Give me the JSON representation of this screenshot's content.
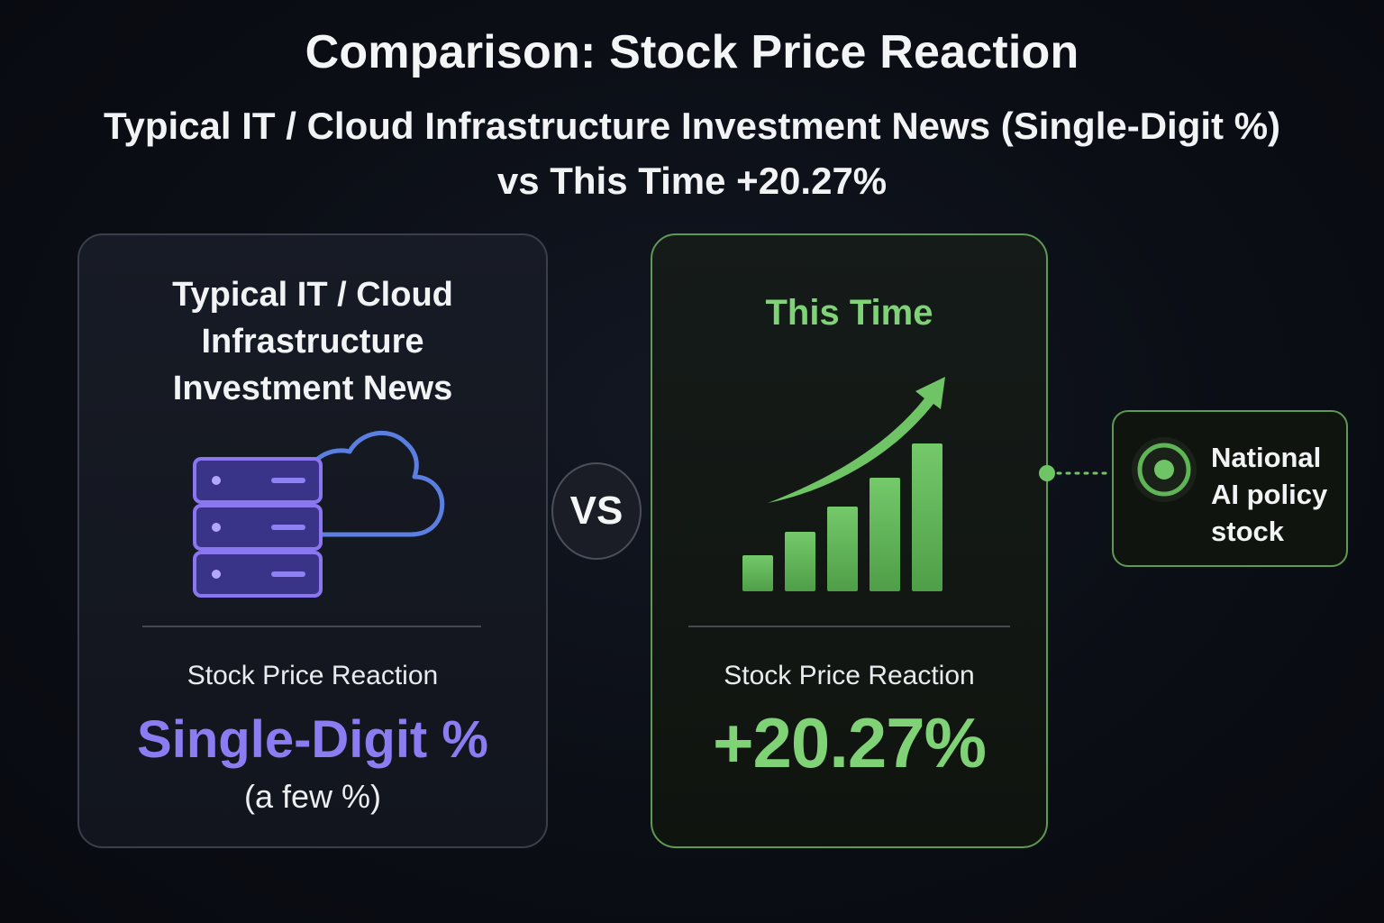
{
  "header": {
    "title": "Comparison: Stock Price Reaction",
    "subtitle_line1": "Typical IT / Cloud Infrastructure Investment News (Single-Digit %)",
    "subtitle_line2": "vs This Time +20.27%"
  },
  "left_panel": {
    "heading_lines": [
      "Typical IT / Cloud",
      "Infrastructure",
      "Investment News"
    ],
    "icon": "server-cloud-icon",
    "reaction_label": "Stock Price Reaction",
    "value": "Single-Digit %",
    "note": "(a few %)",
    "accent_color": "#8b7cf2"
  },
  "vs_label": "VS",
  "right_panel": {
    "heading": "This Time",
    "icon": "growth-chart-icon",
    "reaction_label": "Stock Price Reaction",
    "value": "+20.27%",
    "accent_color": "#7fd276"
  },
  "callout": {
    "icon": "target-icon",
    "lines": [
      "National",
      "AI policy",
      "stock"
    ],
    "border_color": "#5e9a52"
  }
}
